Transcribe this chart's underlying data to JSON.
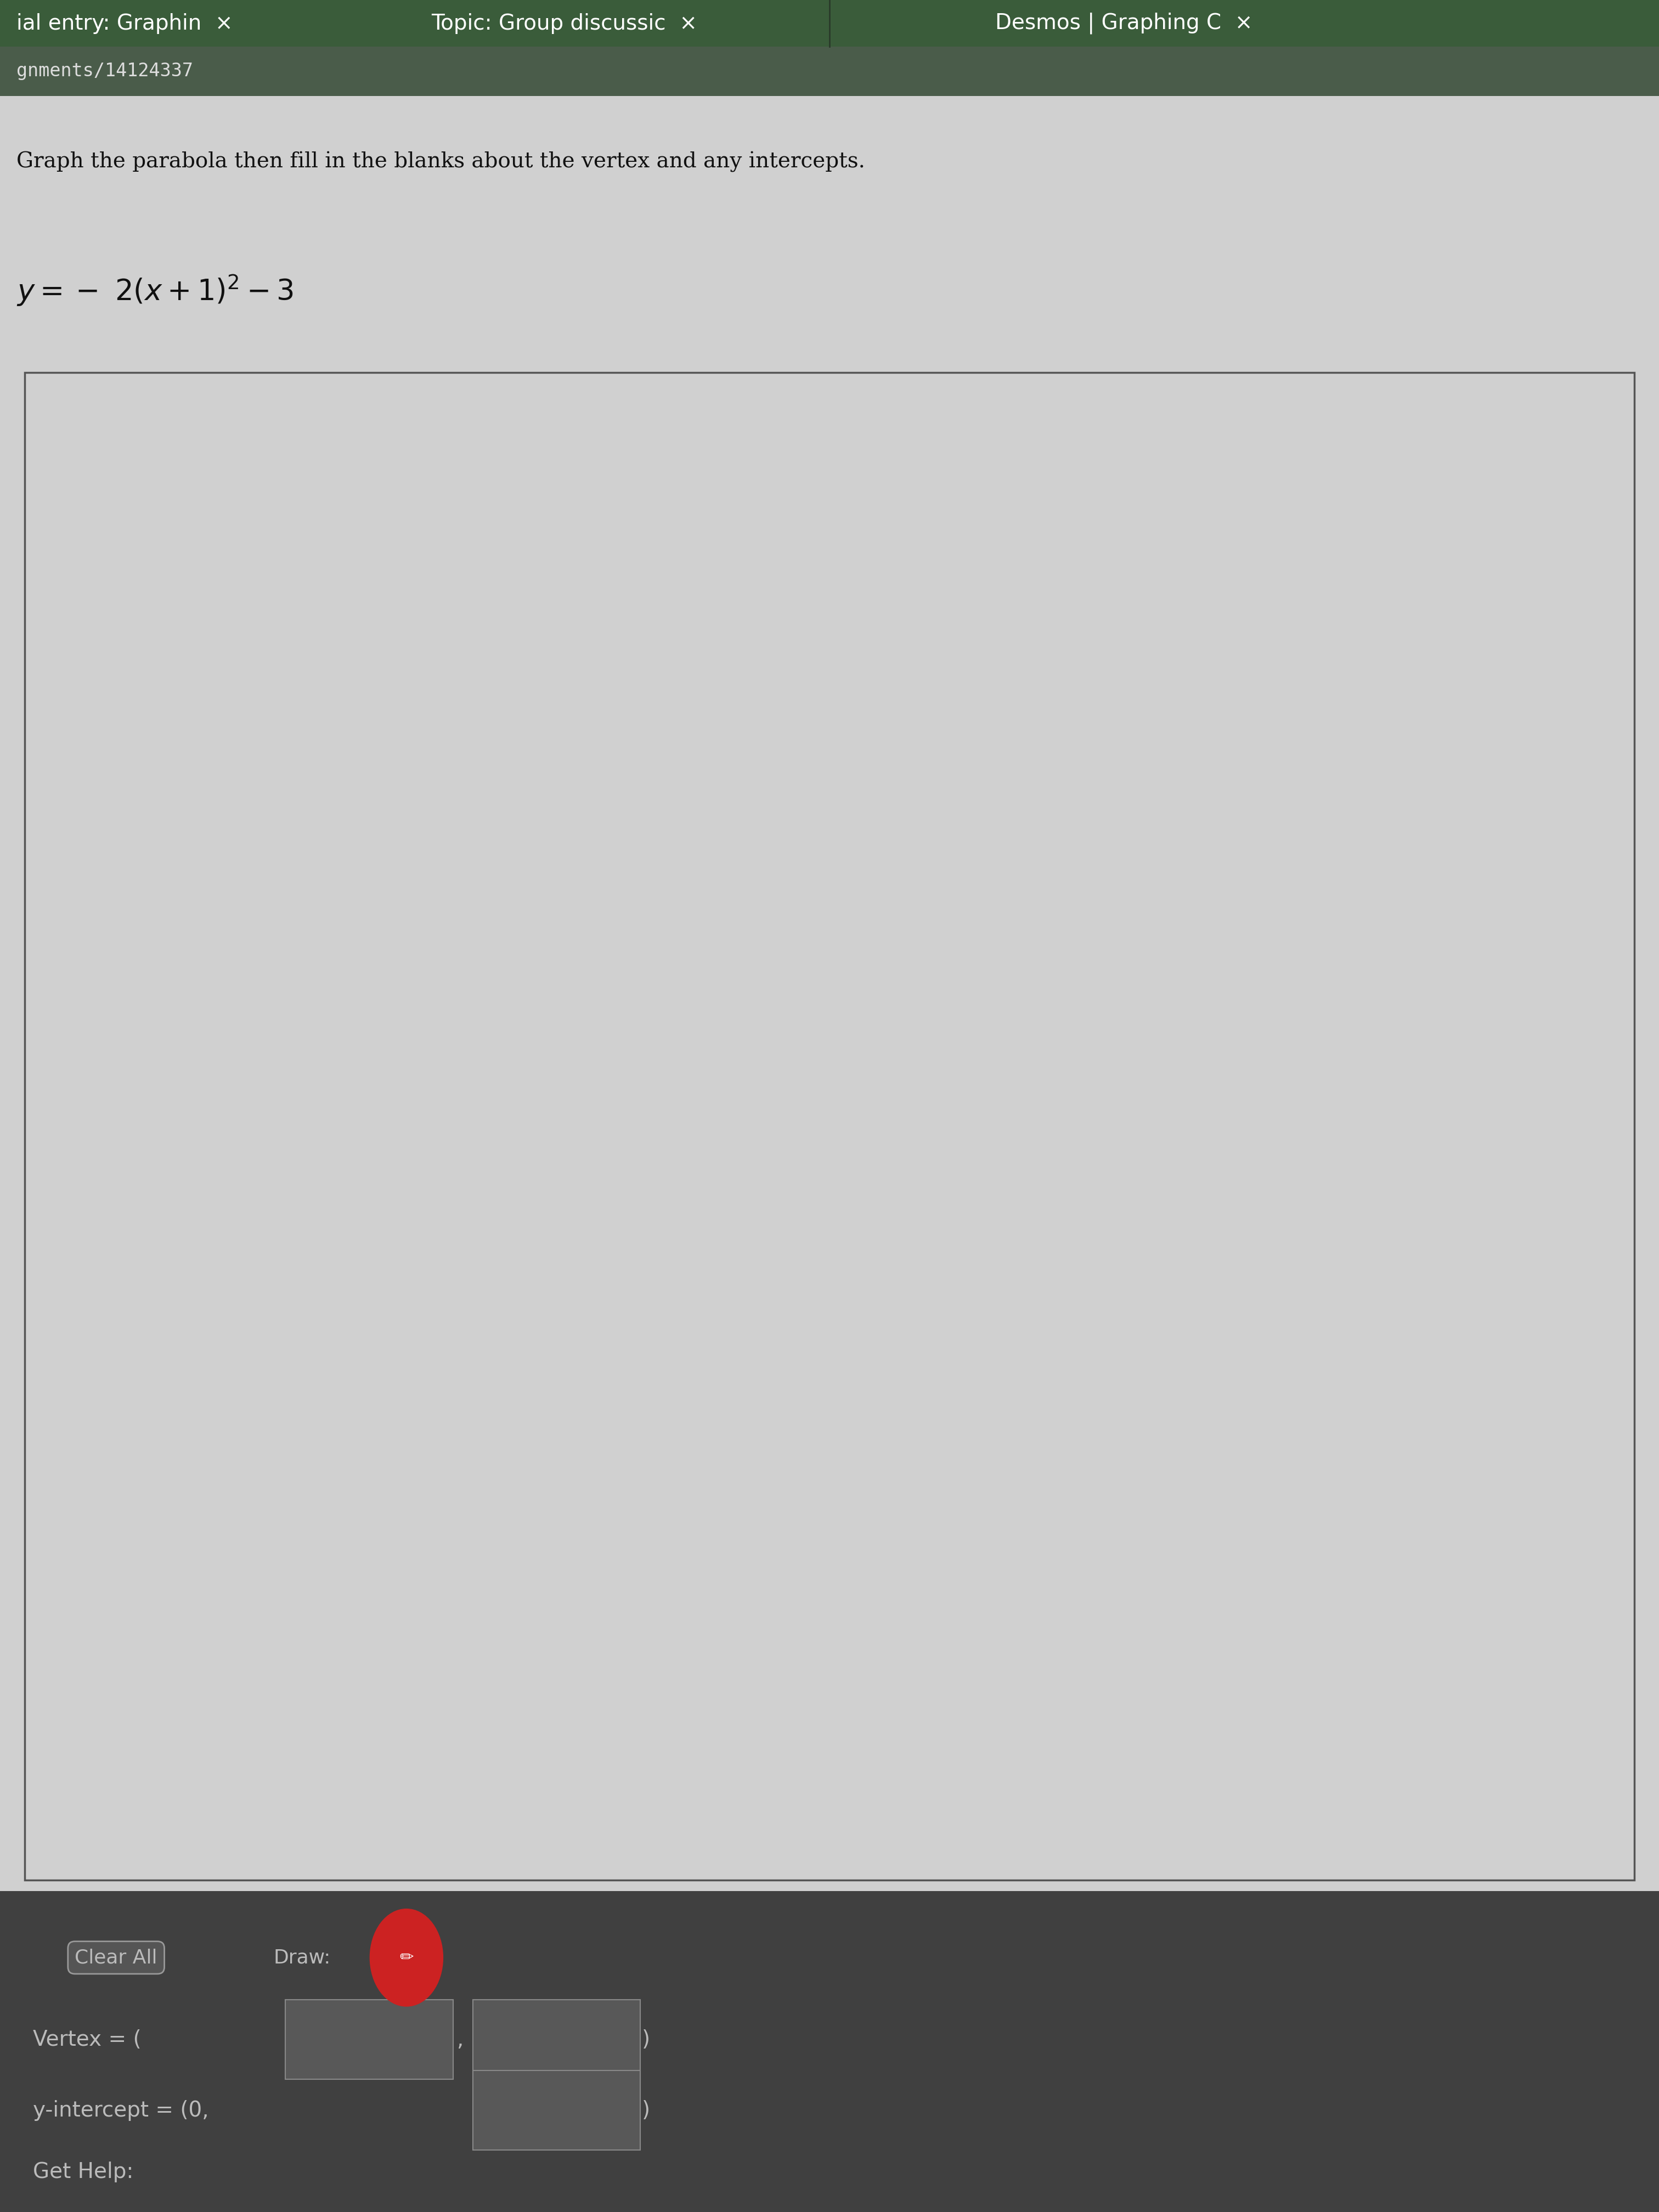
{
  "tab1": "ial entry: Graphin",
  "tab2": "Topic: Group discussic",
  "tab3": "Desmos | Graphing C",
  "url": "gnments/14124337",
  "instruction": "Graph the parabola then fill in the blanks about the vertex and any intercepts.",
  "xmin": -7,
  "xmax": 7,
  "ymin": -7,
  "ymax": 7,
  "color_tab_bar": "#3a5c3a",
  "color_tab_bar2": "#4a6a4a",
  "color_addr_bar": "#4a5c4a",
  "color_page_bg": "#c8c8c8",
  "color_graph_bg": "#d0d0d0",
  "color_graph_border": "#555555",
  "color_bottom_bg": "#404040",
  "color_grid": "#aaaaaa",
  "color_axis": "#555555",
  "color_tick_label": "#333333",
  "color_text_dark": "#111111",
  "color_text_light": "#cccccc",
  "color_box_fill": "#585858",
  "color_box_edge": "#888888",
  "color_button_fill": "#666666",
  "color_button_edge": "#999999",
  "color_draw_icon": "#cc2222"
}
